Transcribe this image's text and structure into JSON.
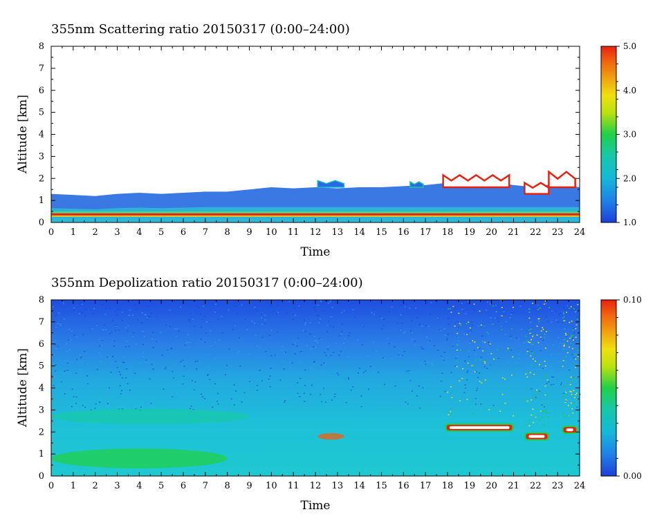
{
  "chart_data": [
    {
      "type": "heatmap",
      "title": "355nm Scattering ratio  20150317 (0:00–24:00)",
      "xlabel": "Time",
      "ylabel": "Altitude [km]",
      "xlim": [
        0,
        24
      ],
      "ylim": [
        0,
        8
      ],
      "xticks": [
        "0",
        "1",
        "2",
        "3",
        "4",
        "5",
        "6",
        "7",
        "8",
        "9",
        "10",
        "11",
        "12",
        "13",
        "14",
        "15",
        "16",
        "17",
        "18",
        "19",
        "20",
        "21",
        "22",
        "23",
        "24"
      ],
      "yticks": [
        "0",
        "1",
        "2",
        "3",
        "4",
        "5",
        "6",
        "7",
        "8"
      ],
      "colorbar": {
        "min": 1.0,
        "max": 5.0,
        "ticks": [
          "1.0",
          "2.0",
          "3.0",
          "4.0",
          "5.0"
        ]
      },
      "layer_top_km": [
        [
          0,
          1.3
        ],
        [
          1,
          1.25
        ],
        [
          2,
          1.2
        ],
        [
          3,
          1.3
        ],
        [
          4,
          1.35
        ],
        [
          5,
          1.3
        ],
        [
          6,
          1.35
        ],
        [
          7,
          1.4
        ],
        [
          8,
          1.4
        ],
        [
          9,
          1.5
        ],
        [
          10,
          1.6
        ],
        [
          11,
          1.55
        ],
        [
          12,
          1.6
        ],
        [
          13,
          1.55
        ],
        [
          14,
          1.6
        ],
        [
          15,
          1.6
        ],
        [
          16,
          1.65
        ],
        [
          17,
          1.7
        ],
        [
          18,
          1.8
        ],
        [
          19,
          1.9
        ],
        [
          20,
          1.85
        ],
        [
          21,
          1.7
        ],
        [
          22,
          1.6
        ],
        [
          23,
          1.8
        ],
        [
          24,
          1.6
        ]
      ],
      "cloud_tops": [
        {
          "start": 12.1,
          "end": 13.3,
          "base_km": 1.6,
          "top_km": 1.9,
          "value": 1.8
        },
        {
          "start": 16.3,
          "end": 16.9,
          "base_km": 1.6,
          "top_km": 1.85,
          "value": 2.5
        },
        {
          "start": 17.8,
          "end": 20.8,
          "base_km": 1.6,
          "top_km": 2.15,
          "value": 5.0
        },
        {
          "start": 21.5,
          "end": 22.6,
          "base_km": 1.3,
          "top_km": 1.8,
          "value": 5.0
        },
        {
          "start": 22.6,
          "end": 23.8,
          "base_km": 1.6,
          "top_km": 2.3,
          "value": 5.0
        }
      ],
      "surface_band": {
        "altitude_km": 0.35,
        "value": 5.0
      }
    },
    {
      "type": "heatmap",
      "title": "355nm Depolization ratio  20150317 (0:00–24:00)",
      "xlabel": "Time",
      "ylabel": "Altitude [km]",
      "xlim": [
        0,
        24
      ],
      "ylim": [
        0,
        8
      ],
      "xticks": [
        "0",
        "1",
        "2",
        "3",
        "4",
        "5",
        "6",
        "7",
        "8",
        "9",
        "10",
        "11",
        "12",
        "13",
        "14",
        "15",
        "16",
        "17",
        "18",
        "19",
        "20",
        "21",
        "22",
        "23",
        "24"
      ],
      "yticks": [
        "0",
        "1",
        "2",
        "3",
        "4",
        "5",
        "6",
        "7",
        "8"
      ],
      "colorbar": {
        "min": 0.0,
        "max": 0.1,
        "ticks": [
          "0.00",
          "0.10"
        ]
      },
      "dust_layers": [
        {
          "start": 0,
          "end": 8,
          "center_km": 0.8,
          "thickness_km": 0.9,
          "value": 0.045
        },
        {
          "start": 0,
          "end": 9,
          "center_km": 2.7,
          "thickness_km": 0.7,
          "value": 0.035
        },
        {
          "start": 12.1,
          "end": 13.3,
          "center_km": 1.8,
          "thickness_km": 0.3,
          "value": 0.09
        }
      ],
      "cloud_segments": [
        {
          "start": 17.9,
          "end": 21.0,
          "altitude_km": 2.2,
          "value": 0.1
        },
        {
          "start": 21.5,
          "end": 22.6,
          "altitude_km": 1.8,
          "value": 0.1
        },
        {
          "start": 23.2,
          "end": 23.9,
          "altitude_km": 2.1,
          "value": 0.1
        }
      ]
    }
  ]
}
